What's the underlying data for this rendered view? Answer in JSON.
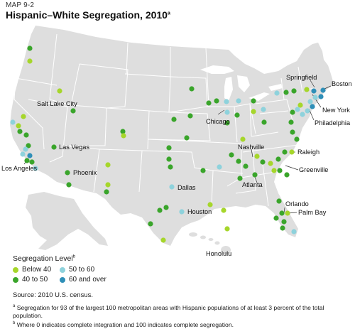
{
  "header": {
    "map_id": "MAP 9-2",
    "title": "Hispanic–White Segregation, 2010",
    "title_sup": "a"
  },
  "colors": {
    "land": "#dedede",
    "border": "#ffffff",
    "below40": "#a6d62b",
    "40to50": "#3aa52b",
    "50to60": "#8ed2dc",
    "60plus": "#2f8fb8"
  },
  "legend": {
    "title": "Segregation Level",
    "title_sup": "b",
    "items": [
      {
        "label": "Below 40",
        "color": "#a6d62b"
      },
      {
        "label": "40 to 50",
        "color": "#3aa52b"
      },
      {
        "label": "50 to 60",
        "color": "#8ed2dc"
      },
      {
        "label": "60 and over",
        "color": "#2f8fb8"
      }
    ]
  },
  "source": "Source: 2010 U.S. census.",
  "notes": [
    {
      "sup": "a",
      "text": "Segregation for 93 of the largest 100 metropolitan areas with Hispanic populations of at least 3 percent of the total population."
    },
    {
      "sup": "b",
      "text": "Where 0 indicates complete integration and 100 indicates complete segregation."
    }
  ],
  "city_labels": {
    "springfield": "Springfield",
    "boston": "Boston",
    "new_york": "New York",
    "philadelphia": "Philadelphia",
    "salt_lake_city": "Salt Lake City",
    "chicago": "Chicago",
    "las_vegas": "Las Vegas",
    "nashville": "Nashville",
    "raleigh": "Raleigh",
    "los_angeles": "Los Angeles",
    "phoenix": "Phoenix",
    "greenville": "Greenville",
    "dallas": "Dallas",
    "atlanta": "Atlanta",
    "orlando": "Orlando",
    "houston": "Houston",
    "palm_bay": "Palm Bay",
    "honolulu": "Honolulu"
  }
}
